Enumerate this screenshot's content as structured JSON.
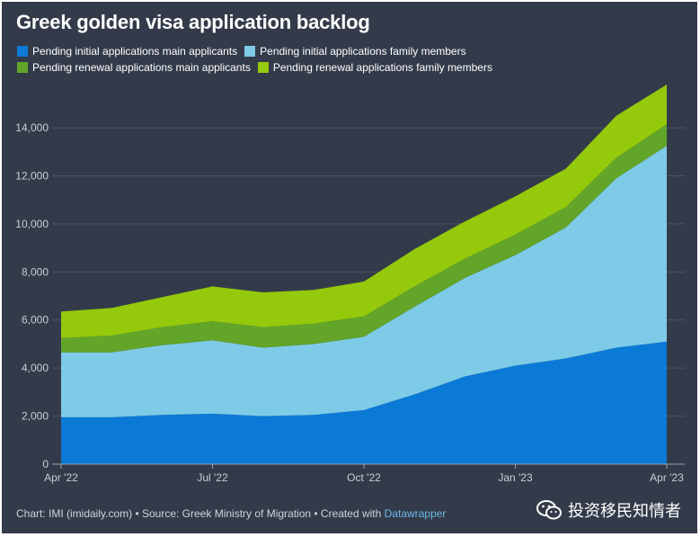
{
  "title": "Greek golden visa application backlog",
  "legend": [
    {
      "label": "Pending initial applications main applicants",
      "color": "#0a7ad6"
    },
    {
      "label": "Pending initial applications family members",
      "color": "#7ecbe8"
    },
    {
      "label": "Pending renewal applications main applicants",
      "color": "#62a529"
    },
    {
      "label": "Pending renewal applications family members",
      "color": "#94c90c"
    }
  ],
  "footer": {
    "prefix": "Chart: IMI (imidaily.com) • Source: Greek Ministry of Migration • Created with ",
    "link": "Datawrapper"
  },
  "watermark": "投资移民知情者",
  "chart_data": {
    "type": "area",
    "stacked": true,
    "x": [
      "2022-04",
      "2022-05",
      "2022-06",
      "2022-07",
      "2022-08",
      "2022-09",
      "2022-10",
      "2022-11",
      "2022-12",
      "2023-01",
      "2023-02",
      "2023-03",
      "2023-04"
    ],
    "x_tick_labels": [
      "Apr '22",
      "Jul '22",
      "Oct '22",
      "Jan '23",
      "Apr '23"
    ],
    "x_tick_indices": [
      0,
      3,
      6,
      9,
      12
    ],
    "y_ticks": [
      0,
      2000,
      4000,
      6000,
      8000,
      10000,
      12000,
      14000
    ],
    "y_tick_labels": [
      "0",
      "2,000",
      "4,000",
      "6,000",
      "8,000",
      "10,000",
      "12,000",
      "14,000"
    ],
    "ylim": [
      0,
      15800
    ],
    "grid": true,
    "series": [
      {
        "name": "Pending initial applications main applicants",
        "color": "#0a7ad6",
        "values": [
          1950,
          1950,
          2050,
          2100,
          2000,
          2050,
          2250,
          2900,
          3650,
          4100,
          4400,
          4850,
          5100
        ]
      },
      {
        "name": "Pending initial applications family members",
        "color": "#7ecbe8",
        "values": [
          2700,
          2700,
          2900,
          3050,
          2850,
          2950,
          3050,
          3650,
          4100,
          4600,
          5450,
          7050,
          8150
        ]
      },
      {
        "name": "Pending renewal applications main applicants",
        "color": "#62a529",
        "values": [
          600,
          700,
          750,
          800,
          850,
          850,
          850,
          850,
          800,
          850,
          850,
          850,
          900
        ]
      },
      {
        "name": "Pending renewal applications family members",
        "color": "#94c90c",
        "values": [
          1100,
          1150,
          1250,
          1450,
          1450,
          1400,
          1450,
          1550,
          1550,
          1600,
          1600,
          1750,
          1650
        ]
      }
    ]
  }
}
